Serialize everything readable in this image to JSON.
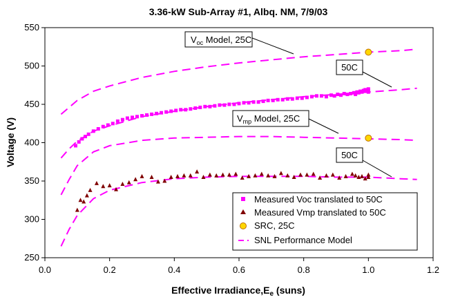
{
  "chart_data": {
    "type": "scatter",
    "title": "3.36-kW Sub-Array #1, Albq. NM, 7/9/03",
    "xlabel": "Effective Irradiance,E",
    "xlabel_sub": "e",
    "xlabel_suffix": " (suns)",
    "ylabel": "Voltage (V)",
    "xlim": [
      0,
      1.2
    ],
    "ylim": [
      250,
      550
    ],
    "x_ticks": [
      "0.0",
      "0.2",
      "0.4",
      "0.6",
      "0.8",
      "1.0",
      "1.2"
    ],
    "y_ticks": [
      "250",
      "300",
      "350",
      "400",
      "450",
      "500",
      "550"
    ],
    "grid": false,
    "legend_position": "bottom-right",
    "legend": {
      "voc": "Measured Voc translated to 50C",
      "vmp": "Measured Vmp translated to 50C",
      "src": "SRC, 25C",
      "model": "SNL Performance  Model"
    },
    "annotations": {
      "voc_model": {
        "main": "V",
        "sub": "oc",
        "rest": " Model, 25C"
      },
      "vmp_model": {
        "main": "V",
        "sub": "mp",
        "rest": " Model, 25C"
      },
      "voc_50": "50C",
      "vmp_50": "50C"
    },
    "colors": {
      "voc": "#ff00ff",
      "vmp": "#800000",
      "model": "#ff00ff",
      "src_fill": "#ffd700",
      "src_stroke": "#c07000"
    },
    "series": [
      {
        "name": "Measured Voc translated to 50C",
        "marker": "square",
        "x": [
          0.095,
          0.105,
          0.115,
          0.125,
          0.135,
          0.15,
          0.165,
          0.18,
          0.195,
          0.21,
          0.225,
          0.24,
          0.255,
          0.27,
          0.285,
          0.3,
          0.315,
          0.33,
          0.345,
          0.36,
          0.375,
          0.39,
          0.405,
          0.42,
          0.435,
          0.45,
          0.465,
          0.48,
          0.495,
          0.51,
          0.525,
          0.54,
          0.555,
          0.57,
          0.585,
          0.6,
          0.615,
          0.63,
          0.645,
          0.66,
          0.675,
          0.69,
          0.705,
          0.72,
          0.735,
          0.75,
          0.765,
          0.78,
          0.795,
          0.81,
          0.825,
          0.84,
          0.855,
          0.87,
          0.885,
          0.895,
          0.905,
          0.915,
          0.925,
          0.935,
          0.945,
          0.955,
          0.96,
          0.965,
          0.97,
          0.975,
          0.98,
          0.985,
          0.99,
          0.995,
          1.0,
          1.0,
          1.0
        ],
        "y": [
          396,
          401,
          405,
          408,
          411,
          415,
          418,
          421,
          423,
          425,
          428,
          430,
          432,
          433,
          434,
          435,
          436,
          437,
          438,
          439,
          440,
          441,
          442,
          443,
          443,
          444,
          445,
          446,
          447,
          447,
          448,
          449,
          449,
          450,
          450,
          451,
          452,
          452,
          453,
          453,
          454,
          455,
          455,
          456,
          456,
          457,
          457,
          458,
          458,
          459,
          460,
          461,
          461,
          460,
          462,
          461,
          463,
          462,
          464,
          463,
          464,
          465,
          463,
          466,
          465,
          467,
          466,
          468,
          469,
          467,
          470,
          468,
          466
        ]
      },
      {
        "name": "Measured Vmp translated to 50C",
        "marker": "triangle",
        "x": [
          0.1,
          0.11,
          0.12,
          0.13,
          0.14,
          0.16,
          0.18,
          0.2,
          0.22,
          0.24,
          0.26,
          0.28,
          0.3,
          0.33,
          0.35,
          0.37,
          0.39,
          0.41,
          0.43,
          0.45,
          0.47,
          0.49,
          0.51,
          0.53,
          0.55,
          0.57,
          0.59,
          0.61,
          0.63,
          0.65,
          0.67,
          0.69,
          0.71,
          0.73,
          0.75,
          0.77,
          0.79,
          0.81,
          0.83,
          0.85,
          0.87,
          0.89,
          0.91,
          0.93,
          0.95,
          0.96,
          0.97,
          0.98,
          0.99,
          1.0,
          1.0
        ],
        "y": [
          312,
          325,
          323,
          331,
          338,
          347,
          343,
          344,
          339,
          346,
          348,
          352,
          356,
          355,
          349,
          350,
          355,
          356,
          357,
          357,
          362,
          355,
          358,
          357,
          358,
          358,
          359,
          354,
          356,
          357,
          359,
          357,
          356,
          360,
          357,
          355,
          358,
          358,
          359,
          354,
          357,
          358,
          354,
          356,
          359,
          357,
          355,
          356,
          353,
          358,
          355
        ]
      },
      {
        "name": "SRC, 25C",
        "marker": "circle",
        "x": [
          1.0,
          1.0
        ],
        "y": [
          518,
          406
        ]
      },
      {
        "name": "Voc Model, 25C",
        "line": "dashed",
        "x": [
          0.05,
          0.075,
          0.1,
          0.15,
          0.2,
          0.3,
          0.4,
          0.5,
          0.6,
          0.7,
          0.8,
          0.9,
          1.0,
          1.1,
          1.15
        ],
        "y": [
          437,
          446,
          455,
          467,
          474,
          485,
          493,
          499,
          504,
          508,
          512,
          515,
          518,
          520,
          522
        ]
      },
      {
        "name": "Voc Model, 50C",
        "line": "dashed",
        "x": [
          0.05,
          0.075,
          0.1,
          0.15,
          0.2,
          0.3,
          0.4,
          0.5,
          0.6,
          0.7,
          0.8,
          0.9,
          1.0,
          1.1,
          1.15
        ],
        "y": [
          380,
          392,
          402,
          415,
          422,
          434,
          441,
          447,
          452,
          456,
          460,
          463,
          466,
          469,
          471
        ]
      },
      {
        "name": "Vmp Model, 25C",
        "line": "dashed",
        "x": [
          0.05,
          0.075,
          0.1,
          0.15,
          0.2,
          0.3,
          0.4,
          0.5,
          0.6,
          0.7,
          0.8,
          0.9,
          1.0,
          1.1,
          1.15
        ],
        "y": [
          332,
          352,
          370,
          388,
          396,
          403,
          406,
          407,
          408,
          408,
          407,
          406,
          405,
          404,
          403
        ]
      },
      {
        "name": "Vmp Model, 50C",
        "line": "dashed",
        "x": [
          0.05,
          0.075,
          0.1,
          0.15,
          0.2,
          0.3,
          0.4,
          0.5,
          0.6,
          0.7,
          0.8,
          0.9,
          1.0,
          1.1,
          1.15
        ],
        "y": [
          265,
          287,
          305,
          327,
          338,
          348,
          353,
          355,
          356,
          356,
          356,
          355,
          355,
          353,
          352
        ]
      }
    ]
  }
}
